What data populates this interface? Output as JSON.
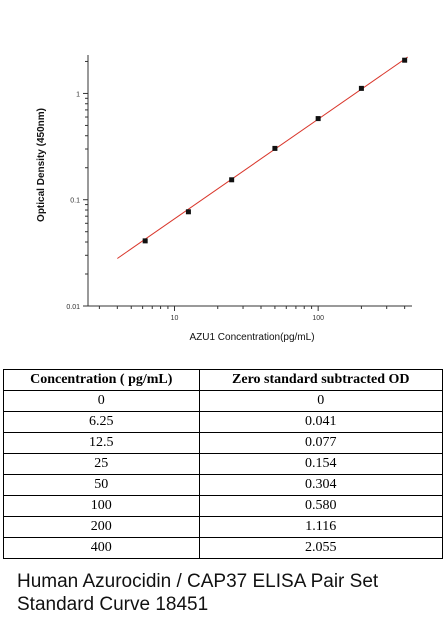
{
  "chart_data": {
    "type": "scatter",
    "xlabel": "AZU1  Concentration(pg/mL)",
    "ylabel": "Optical Density (450nm)",
    "x_scale": "log",
    "y_scale": "log",
    "xlim": [
      2.5,
      450
    ],
    "ylim": [
      0.01,
      2.3
    ],
    "x_ticks": [
      {
        "value": 10,
        "label": "10"
      },
      {
        "value": 100,
        "label": "100"
      }
    ],
    "y_ticks": [
      {
        "value": 0.01,
        "label": "0.01"
      },
      {
        "value": 0.1,
        "label": "0.1"
      },
      {
        "value": 1,
        "label": "1"
      }
    ],
    "points": [
      {
        "x": 6.25,
        "y": 0.041
      },
      {
        "x": 12.5,
        "y": 0.077
      },
      {
        "x": 25,
        "y": 0.154
      },
      {
        "x": 50,
        "y": 0.304
      },
      {
        "x": 100,
        "y": 0.58
      },
      {
        "x": 200,
        "y": 1.116
      },
      {
        "x": 400,
        "y": 2.055
      }
    ],
    "fit_line": {
      "x": [
        4,
        420
      ],
      "y": [
        0.028,
        2.2
      ]
    },
    "colors": {
      "points": "#111111",
      "fit_line": "#d9362b",
      "axis": "#333333"
    }
  },
  "table": {
    "headers": [
      "Concentration ( pg/mL)",
      "Zero standard subtracted OD"
    ],
    "rows": [
      [
        "0",
        "0"
      ],
      [
        "6.25",
        "0.041"
      ],
      [
        "12.5",
        "0.077"
      ],
      [
        "25",
        "0.154"
      ],
      [
        "50",
        "0.304"
      ],
      [
        "100",
        "0.580"
      ],
      [
        "200",
        "1.116"
      ],
      [
        "400",
        "2.055"
      ]
    ]
  },
  "caption": {
    "line1": "Human Azurocidin / CAP37 ELISA Pair Set",
    "line2": "Standard Curve 18451"
  }
}
